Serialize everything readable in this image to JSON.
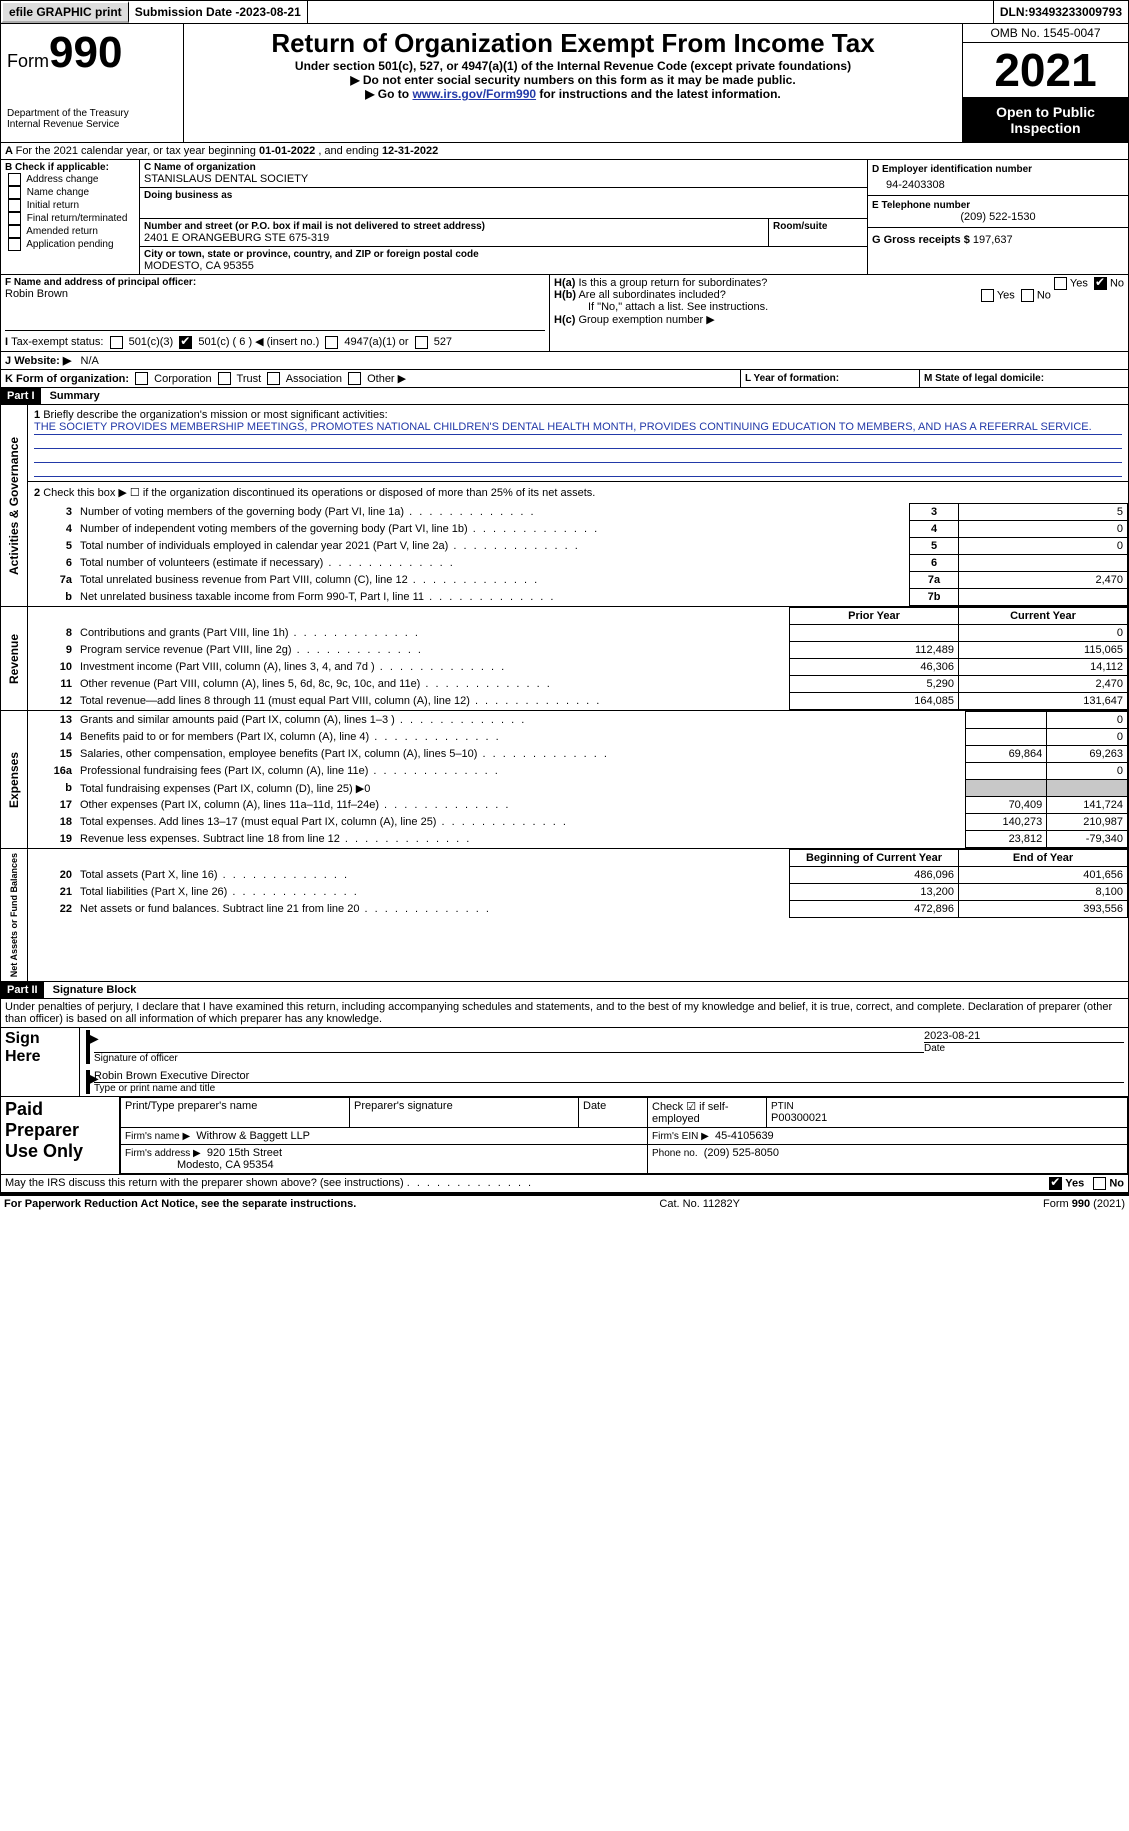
{
  "topbar": {
    "efile": "efile GRAPHIC print",
    "sub_label": "Submission Date - ",
    "sub_date": "2023-08-21",
    "dln_label": "DLN: ",
    "dln": "93493233009793"
  },
  "header": {
    "form_word": "Form",
    "form_no": "990",
    "dept": "Department of the Treasury",
    "irs": "Internal Revenue Service",
    "title": "Return of Organization Exempt From Income Tax",
    "sub1": "Under section 501(c), 527, or 4947(a)(1) of the Internal Revenue Code (except private foundations)",
    "sub2": "Do not enter social security numbers on this form as it may be made public.",
    "sub3_pre": "Go to ",
    "sub3_link": "www.irs.gov/Form990",
    "sub3_post": " for instructions and the latest information.",
    "omb": "OMB No. 1545-0047",
    "year": "2021",
    "open": "Open to Public Inspection"
  },
  "A": {
    "text": "For the 2021 calendar year, or tax year beginning ",
    "d1": "01-01-2022",
    "mid": " , and ending ",
    "d2": "12-31-2022"
  },
  "B": {
    "label": "B Check if applicable:",
    "opts": [
      "Address change",
      "Name change",
      "Initial return",
      "Final return/terminated",
      "Amended return",
      "Application pending"
    ]
  },
  "C": {
    "name_label": "C Name of organization",
    "name": "STANISLAUS DENTAL SOCIETY",
    "dba_label": "Doing business as",
    "dba": "",
    "street_label": "Number and street (or P.O. box if mail is not delivered to street address)",
    "room_label": "Room/suite",
    "street": "2401 E ORANGEBURG STE 675-319",
    "city_label": "City or town, state or province, country, and ZIP or foreign postal code",
    "city": "MODESTO, CA  95355"
  },
  "D": {
    "label": "D Employer identification number",
    "val": "94-2403308"
  },
  "E": {
    "label": "E Telephone number",
    "val": "(209) 522-1530"
  },
  "G": {
    "label": "G Gross receipts $",
    "val": "197,637"
  },
  "F": {
    "label": "F  Name and address of principal officer:",
    "name": "Robin Brown"
  },
  "H": {
    "a": "Is this a group return for subordinates?",
    "b": "Are all subordinates included?",
    "note": "If \"No,\" attach a list. See instructions.",
    "c": "Group exemption number ▶"
  },
  "I": {
    "label": "Tax-exempt status:",
    "opts": [
      "501(c)(3)",
      "501(c) ( 6 ) ◀ (insert no.)",
      "4947(a)(1) or",
      "527"
    ]
  },
  "J": {
    "label": "Website: ▶",
    "val": "N/A"
  },
  "K": {
    "label": "K Form of organization:",
    "opts": [
      "Corporation",
      "Trust",
      "Association",
      "Other ▶"
    ]
  },
  "L": {
    "label": "L Year of formation:"
  },
  "M": {
    "label": "M State of legal domicile:"
  },
  "part1": {
    "bar": "Part I",
    "title": "Summary"
  },
  "s1": {
    "label": "Briefly describe the organization's mission or most significant activities:",
    "text": "THE SOCIETY PROVIDES MEMBERSHIP MEETINGS, PROMOTES NATIONAL CHILDREN'S DENTAL HEALTH MONTH, PROVIDES CONTINUING EDUCATION TO MEMBERS, AND HAS A REFERRAL SERVICE."
  },
  "s2": "Check this box ▶ ☐  if the organization discontinued its operations or disposed of more than 25% of its net assets.",
  "sum": [
    {
      "n": "3",
      "t": "Number of voting members of the governing body (Part VI, line 1a)",
      "b": "3",
      "v": "5"
    },
    {
      "n": "4",
      "t": "Number of independent voting members of the governing body (Part VI, line 1b)",
      "b": "4",
      "v": "0"
    },
    {
      "n": "5",
      "t": "Total number of individuals employed in calendar year 2021 (Part V, line 2a)",
      "b": "5",
      "v": "0"
    },
    {
      "n": "6",
      "t": "Total number of volunteers (estimate if necessary)",
      "b": "6",
      "v": ""
    },
    {
      "n": "7a",
      "t": "Total unrelated business revenue from Part VIII, column (C), line 12",
      "b": "7a",
      "v": "2,470"
    },
    {
      "n": "b",
      "t": "Net unrelated business taxable income from Form 990-T, Part I, line 11",
      "b": "7b",
      "v": ""
    }
  ],
  "py": "Prior Year",
  "cy": "Current Year",
  "rev": [
    {
      "n": "8",
      "t": "Contributions and grants (Part VIII, line 1h)",
      "p": "",
      "c": "0"
    },
    {
      "n": "9",
      "t": "Program service revenue (Part VIII, line 2g)",
      "p": "112,489",
      "c": "115,065"
    },
    {
      "n": "10",
      "t": "Investment income (Part VIII, column (A), lines 3, 4, and 7d )",
      "p": "46,306",
      "c": "14,112"
    },
    {
      "n": "11",
      "t": "Other revenue (Part VIII, column (A), lines 5, 6d, 8c, 9c, 10c, and 11e)",
      "p": "5,290",
      "c": "2,470"
    },
    {
      "n": "12",
      "t": "Total revenue—add lines 8 through 11 (must equal Part VIII, column (A), line 12)",
      "p": "164,085",
      "c": "131,647"
    }
  ],
  "exp": [
    {
      "n": "13",
      "t": "Grants and similar amounts paid (Part IX, column (A), lines 1–3 )",
      "p": "",
      "c": "0"
    },
    {
      "n": "14",
      "t": "Benefits paid to or for members (Part IX, column (A), line 4)",
      "p": "",
      "c": "0"
    },
    {
      "n": "15",
      "t": "Salaries, other compensation, employee benefits (Part IX, column (A), lines 5–10)",
      "p": "69,864",
      "c": "69,263"
    },
    {
      "n": "16a",
      "t": "Professional fundraising fees (Part IX, column (A), line 11e)",
      "p": "",
      "c": "0"
    },
    {
      "n": "b",
      "t": "Total fundraising expenses (Part IX, column (D), line 25) ▶0",
      "p": "g",
      "c": "g"
    },
    {
      "n": "17",
      "t": "Other expenses (Part IX, column (A), lines 11a–11d, 11f–24e)",
      "p": "70,409",
      "c": "141,724"
    },
    {
      "n": "18",
      "t": "Total expenses. Add lines 13–17 (must equal Part IX, column (A), line 25)",
      "p": "140,273",
      "c": "210,987"
    },
    {
      "n": "19",
      "t": "Revenue less expenses. Subtract line 18 from line 12",
      "p": "23,812",
      "c": "-79,340"
    }
  ],
  "by": "Beginning of Current Year",
  "ey": "End of Year",
  "na": [
    {
      "n": "20",
      "t": "Total assets (Part X, line 16)",
      "p": "486,096",
      "c": "401,656"
    },
    {
      "n": "21",
      "t": "Total liabilities (Part X, line 26)",
      "p": "13,200",
      "c": "8,100"
    },
    {
      "n": "22",
      "t": "Net assets or fund balances. Subtract line 21 from line 20",
      "p": "472,896",
      "c": "393,556"
    }
  ],
  "vlab": {
    "ag": "Activities & Governance",
    "rv": "Revenue",
    "ex": "Expenses",
    "na": "Net Assets or\nFund Balances"
  },
  "part2": {
    "bar": "Part II",
    "title": "Signature Block"
  },
  "pen": "Under penalties of perjury, I declare that I have examined this return, including accompanying schedules and statements, and to the best of my knowledge and belief, it is true, correct, and complete. Declaration of preparer (other than officer) is based on all information of which preparer has any knowledge.",
  "sign": {
    "here": "Sign Here",
    "sig": "Signature of officer",
    "date_l": "Date",
    "date": "2023-08-21",
    "name": "Robin Brown  Executive Director",
    "name_l": "Type or print name and title"
  },
  "paid": {
    "title": "Paid Preparer Use Only",
    "h": [
      "Print/Type preparer's name",
      "Preparer's signature",
      "Date"
    ],
    "check": "Check ☑ if self-employed",
    "ptin_l": "PTIN",
    "ptin": "P00300021",
    "firm_l": "Firm's name   ▶",
    "firm": "Withrow & Baggett LLP",
    "ein_l": "Firm's EIN ▶",
    "ein": "45-4105639",
    "addr_l": "Firm's address ▶",
    "addr1": "920 15th Street",
    "addr2": "Modesto, CA  95354",
    "ph_l": "Phone no.",
    "ph": "(209) 525-8050"
  },
  "irs_q": "May the IRS discuss this return with the preparer shown above? (see instructions)",
  "footer": {
    "l": "For Paperwork Reduction Act Notice, see the separate instructions.",
    "m": "Cat. No. 11282Y",
    "r": "Form 990 (2021)"
  },
  "yn": {
    "yes": "Yes",
    "no": "No"
  }
}
